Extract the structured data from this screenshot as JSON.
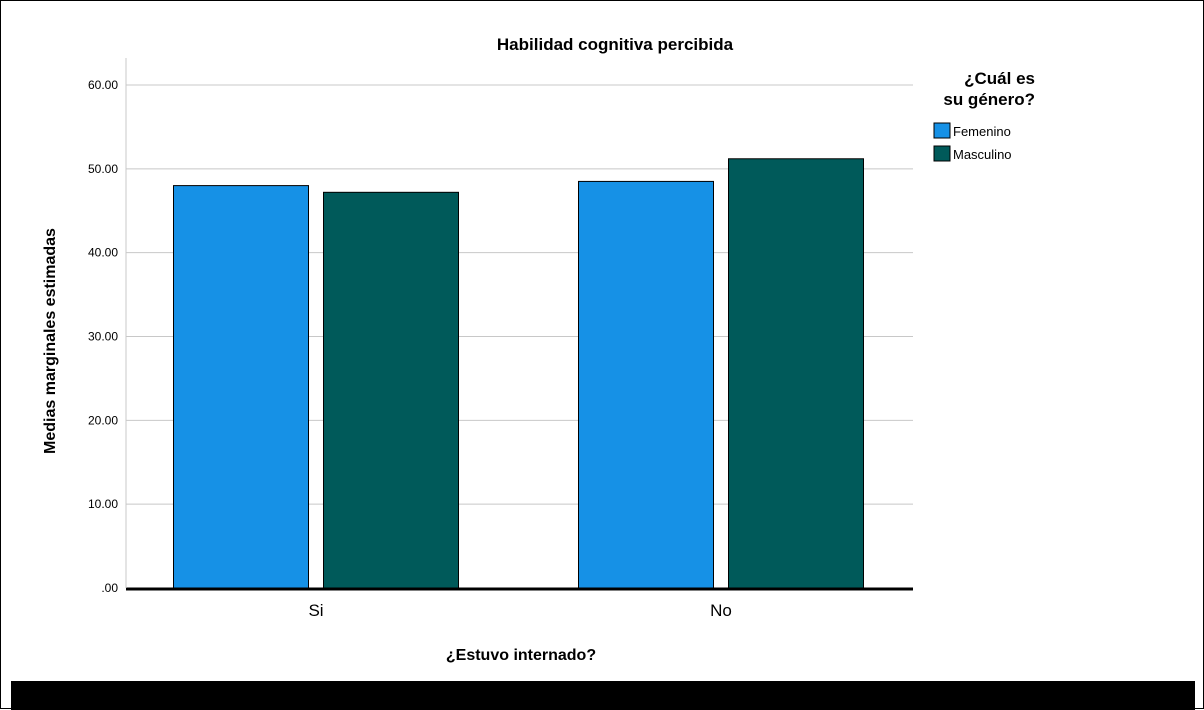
{
  "chart_data": {
    "type": "bar",
    "title": "Habilidad cognitiva percibida",
    "xlabel": "¿Estuvo internado?",
    "ylabel": "Medias marginales estimadas",
    "categories": [
      "Si",
      "No"
    ],
    "series": [
      {
        "name": "Femenino",
        "values": [
          48.0,
          48.5
        ],
        "color": "#1691e6"
      },
      {
        "name": "Masculino",
        "values": [
          47.2,
          51.2
        ],
        "color": "#005a5a"
      }
    ],
    "ylim": [
      0,
      60
    ],
    "yticks": [
      ".00",
      "10.00",
      "20.00",
      "30.00",
      "40.00",
      "50.00",
      "60.00"
    ],
    "grid": true,
    "legend": {
      "title_lines": [
        "¿Cuál es",
        "su género?"
      ],
      "placement": "right"
    }
  }
}
